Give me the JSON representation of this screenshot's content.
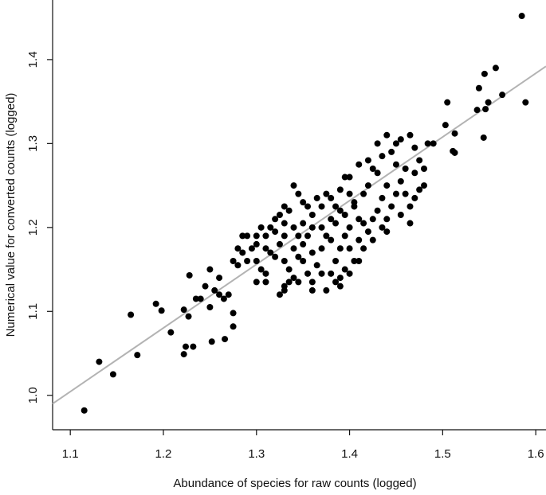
{
  "chart_data": {
    "type": "scatter",
    "xlabel": "Abundance of species for raw counts (logged)",
    "ylabel": "Numerical value for converted counts (logged)",
    "color": "#000000",
    "x": [
      1.115,
      1.131,
      1.146,
      1.165,
      1.172,
      1.192,
      1.198,
      1.208,
      1.222,
      1.224,
      1.232,
      1.227,
      1.222,
      1.228,
      1.252,
      1.266,
      1.275,
      1.275,
      1.585,
      1.589,
      1.557,
      1.545,
      1.564,
      1.539,
      1.549,
      1.546,
      1.537,
      1.544,
      1.505,
      1.503,
      1.511,
      1.513,
      1.513,
      1.484,
      1.25,
      1.26,
      1.245,
      1.255,
      1.26,
      1.265,
      1.24,
      1.235,
      1.25,
      1.27,
      1.275,
      1.28,
      1.285,
      1.28,
      1.29,
      1.295,
      1.3,
      1.3,
      1.305,
      1.3,
      1.31,
      1.31,
      1.315,
      1.31,
      1.315,
      1.32,
      1.325,
      1.33,
      1.335,
      1.34,
      1.345,
      1.35,
      1.355,
      1.34,
      1.33,
      1.325,
      1.32,
      1.33,
      1.335,
      1.34,
      1.33,
      1.325,
      1.33,
      1.335,
      1.345,
      1.35,
      1.355,
      1.36,
      1.36,
      1.365,
      1.37,
      1.36,
      1.37,
      1.375,
      1.38,
      1.385,
      1.39,
      1.375,
      1.365,
      1.39,
      1.395,
      1.4,
      1.41,
      1.42,
      1.425,
      1.4,
      1.405,
      1.41,
      1.415,
      1.4,
      1.395,
      1.39,
      1.385,
      1.38,
      1.385,
      1.4,
      1.41,
      1.42,
      1.425,
      1.43,
      1.435,
      1.44,
      1.44,
      1.435,
      1.445,
      1.45,
      1.455,
      1.46,
      1.46,
      1.445,
      1.45,
      1.455,
      1.465,
      1.47,
      1.475,
      1.47,
      1.48,
      1.47,
      1.465,
      1.45,
      1.435,
      1.43,
      1.42,
      1.415,
      1.43,
      1.44,
      1.35,
      1.36,
      1.37,
      1.38,
      1.385,
      1.395,
      1.405,
      1.345,
      1.34,
      1.33,
      1.32,
      1.31,
      1.3,
      1.29,
      1.285,
      1.305,
      1.35,
      1.355,
      1.345,
      1.36,
      1.375,
      1.39,
      1.395,
      1.405,
      1.415,
      1.425,
      1.44,
      1.455,
      1.465,
      1.475,
      1.48,
      1.49,
      1.41,
      1.4,
      1.39,
      1.37,
      1.38
    ],
    "values": [
      0.982,
      1.04,
      1.025,
      1.096,
      1.048,
      1.109,
      1.101,
      1.075,
      1.049,
      1.058,
      1.058,
      1.094,
      1.102,
      1.143,
      1.064,
      1.067,
      1.082,
      1.098,
      1.452,
      1.349,
      1.39,
      1.383,
      1.358,
      1.366,
      1.349,
      1.341,
      1.34,
      1.307,
      1.349,
      1.322,
      1.291,
      1.289,
      1.312,
      1.3,
      1.15,
      1.14,
      1.13,
      1.125,
      1.12,
      1.115,
      1.115,
      1.115,
      1.105,
      1.12,
      1.16,
      1.175,
      1.19,
      1.155,
      1.16,
      1.175,
      1.18,
      1.16,
      1.15,
      1.135,
      1.145,
      1.135,
      1.17,
      1.19,
      1.2,
      1.21,
      1.215,
      1.225,
      1.22,
      1.25,
      1.24,
      1.23,
      1.225,
      1.2,
      1.19,
      1.18,
      1.165,
      1.16,
      1.15,
      1.14,
      1.125,
      1.12,
      1.13,
      1.135,
      1.165,
      1.18,
      1.19,
      1.2,
      1.17,
      1.155,
      1.145,
      1.135,
      1.175,
      1.19,
      1.21,
      1.225,
      1.22,
      1.24,
      1.235,
      1.245,
      1.26,
      1.26,
      1.275,
      1.28,
      1.27,
      1.24,
      1.225,
      1.21,
      1.205,
      1.2,
      1.19,
      1.175,
      1.16,
      1.145,
      1.135,
      1.175,
      1.185,
      1.195,
      1.21,
      1.22,
      1.235,
      1.25,
      1.21,
      1.2,
      1.225,
      1.24,
      1.255,
      1.27,
      1.24,
      1.29,
      1.3,
      1.305,
      1.31,
      1.295,
      1.28,
      1.265,
      1.25,
      1.235,
      1.225,
      1.275,
      1.285,
      1.265,
      1.25,
      1.24,
      1.3,
      1.31,
      1.205,
      1.215,
      1.225,
      1.235,
      1.205,
      1.215,
      1.23,
      1.19,
      1.175,
      1.205,
      1.195,
      1.175,
      1.19,
      1.19,
      1.17,
      1.2,
      1.16,
      1.145,
      1.135,
      1.125,
      1.125,
      1.14,
      1.15,
      1.16,
      1.175,
      1.185,
      1.195,
      1.215,
      1.205,
      1.245,
      1.27,
      1.3,
      1.16,
      1.145,
      1.13,
      1.2,
      1.185
    ],
    "fit_line": {
      "color": "#b3b3b3",
      "x": [
        1.081,
        1.611
      ],
      "values": [
        0.99,
        1.392
      ]
    },
    "xlim": [
      1.081,
      1.611
    ],
    "ylim": [
      0.959,
      1.471
    ],
    "xticks": [
      {
        "value": 1.1,
        "label": "1.1"
      },
      {
        "value": 1.2,
        "label": "1.2"
      },
      {
        "value": 1.3,
        "label": "1.3"
      },
      {
        "value": 1.4,
        "label": "1.4"
      },
      {
        "value": 1.5,
        "label": "1.5"
      },
      {
        "value": 1.6,
        "label": "1.6"
      }
    ],
    "yticks": [
      {
        "value": 1.0,
        "label": "1.0"
      },
      {
        "value": 1.1,
        "label": "1.1"
      },
      {
        "value": 1.2,
        "label": "1.2"
      },
      {
        "value": 1.3,
        "label": "1.3"
      },
      {
        "value": 1.4,
        "label": "1.4"
      }
    ]
  }
}
